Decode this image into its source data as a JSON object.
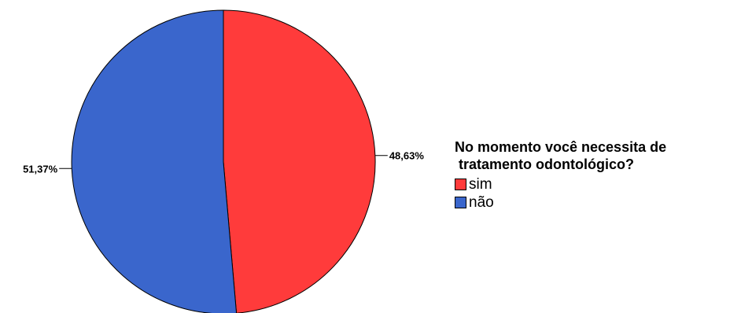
{
  "chart_data": {
    "type": "pie",
    "categories": [
      "sim",
      "não"
    ],
    "values": [
      48.63,
      51.37
    ],
    "labels": [
      "48,63%",
      "51,37%"
    ],
    "colors": [
      "#ff3b3b",
      "#3a66cc"
    ],
    "start_angle": "12 o'clock",
    "direction": "clockwise",
    "legend": {
      "title_line1": "No momento você necessita de",
      "title_line2": " tratamento odontológico?",
      "position": "right"
    }
  }
}
